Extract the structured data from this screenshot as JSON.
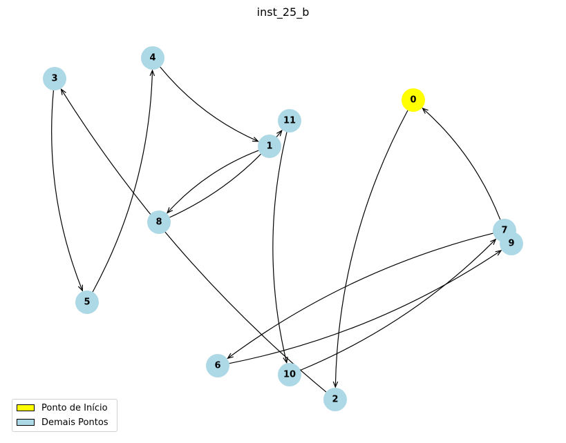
{
  "title": "inst_25_b",
  "colors": {
    "start_node": "#ffff00",
    "other_nodes": "#add8e6",
    "edge": "#000000"
  },
  "legend": {
    "start_label": "Ponto de Início",
    "others_label": "Demais Pontos"
  },
  "graph": {
    "nodes": [
      {
        "id": "0",
        "start": true
      },
      {
        "id": "1",
        "start": false
      },
      {
        "id": "2",
        "start": false
      },
      {
        "id": "3",
        "start": false
      },
      {
        "id": "4",
        "start": false
      },
      {
        "id": "5",
        "start": false
      },
      {
        "id": "6",
        "start": false
      },
      {
        "id": "7",
        "start": false
      },
      {
        "id": "8",
        "start": false
      },
      {
        "id": "9",
        "start": false
      },
      {
        "id": "10",
        "start": false
      },
      {
        "id": "11",
        "start": false
      }
    ],
    "edges": [
      {
        "from": "0",
        "to": "2"
      },
      {
        "from": "2",
        "to": "3"
      },
      {
        "from": "3",
        "to": "5"
      },
      {
        "from": "5",
        "to": "4"
      },
      {
        "from": "4",
        "to": "1"
      },
      {
        "from": "1",
        "to": "8"
      },
      {
        "from": "8",
        "to": "11"
      },
      {
        "from": "11",
        "to": "10"
      },
      {
        "from": "10",
        "to": "7"
      },
      {
        "from": "7",
        "to": "6"
      },
      {
        "from": "6",
        "to": "9"
      },
      {
        "from": "7",
        "to": "0"
      }
    ]
  }
}
